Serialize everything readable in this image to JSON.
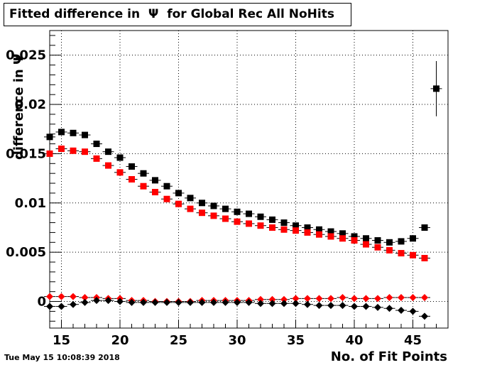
{
  "title": "Fitted difference in  Ψ  for Global Rec All NoHits",
  "timestamp": "Tue May 15 10:08:39 2018",
  "chart_data": {
    "type": "scatter",
    "xlabel": "No. of Fit Points",
    "ylabel": "difference in Ψ",
    "xlim": [
      14,
      48
    ],
    "ylim": [
      -0.0027,
      0.0275
    ],
    "x_ticks": [
      "15",
      "20",
      "25",
      "30",
      "35",
      "40",
      "45"
    ],
    "y_ticks": [
      "0",
      "0.005",
      "0.01",
      "0.015",
      "0.02",
      "0.025"
    ],
    "grid": true,
    "series": [
      {
        "marker": "square",
        "color": "#000000",
        "x": [
          14,
          15,
          16,
          17,
          18,
          19,
          20,
          21,
          22,
          23,
          24,
          25,
          26,
          27,
          28,
          29,
          30,
          31,
          32,
          33,
          34,
          35,
          36,
          37,
          38,
          39,
          40,
          41,
          42,
          43,
          44,
          45,
          46,
          47
        ],
        "y": [
          0.0167,
          0.0172,
          0.0171,
          0.0169,
          0.016,
          0.0152,
          0.0146,
          0.0137,
          0.013,
          0.0123,
          0.0117,
          0.011,
          0.0105,
          0.01,
          0.0097,
          0.0094,
          0.0091,
          0.0089,
          0.0086,
          0.0083,
          0.008,
          0.0077,
          0.0075,
          0.0073,
          0.0071,
          0.0069,
          0.0066,
          0.0064,
          0.0062,
          0.006,
          0.0061,
          0.0064,
          0.0075,
          0.0216
        ],
        "yerr": [
          0,
          0,
          0,
          0,
          0,
          0,
          0,
          0,
          0,
          0,
          0,
          0,
          0,
          0,
          0,
          0,
          0,
          0,
          0,
          0,
          0,
          0,
          0,
          0,
          0,
          0,
          0,
          0,
          0,
          0,
          0,
          0,
          0,
          0.0028
        ]
      },
      {
        "marker": "square",
        "color": "#ff0000",
        "x": [
          14,
          15,
          16,
          17,
          18,
          19,
          20,
          21,
          22,
          23,
          24,
          25,
          26,
          27,
          28,
          29,
          30,
          31,
          32,
          33,
          34,
          35,
          36,
          37,
          38,
          39,
          40,
          41,
          42,
          43,
          44,
          45,
          46
        ],
        "y": [
          0.015,
          0.0155,
          0.0153,
          0.0152,
          0.0145,
          0.0138,
          0.0131,
          0.0124,
          0.0117,
          0.0111,
          0.0104,
          0.0099,
          0.0094,
          0.009,
          0.0087,
          0.0084,
          0.0081,
          0.0079,
          0.0077,
          0.0075,
          0.0073,
          0.0072,
          0.007,
          0.0068,
          0.0066,
          0.0064,
          0.0062,
          0.0058,
          0.0055,
          0.0052,
          0.0049,
          0.0047,
          0.0044
        ]
      },
      {
        "marker": "diamond",
        "color": "#ff0000",
        "x": [
          14,
          15,
          16,
          17,
          18,
          19,
          20,
          21,
          22,
          23,
          24,
          25,
          26,
          27,
          28,
          29,
          30,
          31,
          32,
          33,
          34,
          35,
          36,
          37,
          38,
          39,
          40,
          41,
          42,
          43,
          44,
          45,
          46
        ],
        "y": [
          0.0005,
          0.0005,
          0.0005,
          0.0004,
          0.0004,
          0.0003,
          0.0003,
          0.0001,
          0.0001,
          0.0,
          0.0,
          0.0,
          0.0,
          0.0001,
          0.0001,
          0.0001,
          0.0001,
          0.0001,
          0.0002,
          0.0002,
          0.0002,
          0.0003,
          0.0003,
          0.0003,
          0.0003,
          0.0004,
          0.0003,
          0.0003,
          0.0003,
          0.0004,
          0.0004,
          0.0004,
          0.0004
        ]
      },
      {
        "marker": "diamond",
        "color": "#000000",
        "x": [
          14,
          15,
          16,
          17,
          18,
          19,
          20,
          21,
          22,
          23,
          24,
          25,
          26,
          27,
          28,
          29,
          30,
          31,
          32,
          33,
          34,
          35,
          36,
          37,
          38,
          39,
          40,
          41,
          42,
          43,
          44,
          45,
          46
        ],
        "y": [
          -0.0005,
          -0.0005,
          -0.0003,
          -0.0001,
          0.0001,
          0.0001,
          0.0,
          -0.0001,
          -0.0001,
          -0.0001,
          -0.0001,
          -0.0001,
          -0.0001,
          -0.0001,
          -0.0001,
          -0.0001,
          -0.0001,
          -0.0001,
          -0.0002,
          -0.0002,
          -0.0002,
          -0.0002,
          -0.0003,
          -0.0004,
          -0.0004,
          -0.0004,
          -0.0005,
          -0.0005,
          -0.0006,
          -0.0007,
          -0.0009,
          -0.001,
          -0.0015
        ]
      }
    ]
  }
}
